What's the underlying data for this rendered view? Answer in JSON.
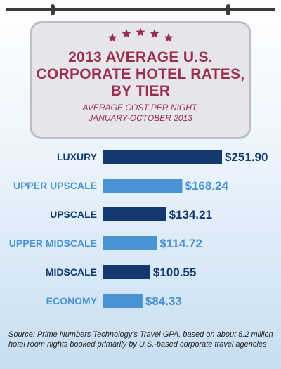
{
  "colors": {
    "dark_bar": "#123a6e",
    "light_bar": "#4a93d2",
    "title": "#9a2e4f",
    "star": "#9a2e4f",
    "dark_label": "#123a6e",
    "light_label": "#4a93d2"
  },
  "header": {
    "title_lines": [
      "2013 AVERAGE U.S.",
      "CORPORATE HOTEL RATES,",
      "BY TIER"
    ],
    "subtitle_lines": [
      "AVERAGE COST PER NIGHT,",
      "JANUARY-OCTOBER 2013"
    ],
    "star_icon": "star-icon"
  },
  "chart_data": {
    "type": "bar",
    "orientation": "horizontal",
    "title": "2013 AVERAGE U.S. CORPORATE HOTEL RATES, BY TIER",
    "subtitle": "AVERAGE COST PER NIGHT, JANUARY-OCTOBER 2013",
    "categories": [
      "LUXURY",
      "UPPER UPSCALE",
      "UPSCALE",
      "UPPER MIDSCALE",
      "MIDSCALE",
      "ECONOMY"
    ],
    "values": [
      251.9,
      168.24,
      134.21,
      114.72,
      100.55,
      84.33
    ],
    "value_labels": [
      "$251.90",
      "$168.24",
      "$134.21",
      "$114.72",
      "$100.55",
      "$84.33"
    ],
    "bar_styles": [
      "dark",
      "light",
      "dark",
      "light",
      "dark",
      "light"
    ],
    "xlim": [
      0,
      251.9
    ],
    "grid": false,
    "xlabel": "",
    "ylabel": ""
  },
  "source": "Source: Prime Numbers Technology's Travel GPA, based on about 5.2 million hotel room nights booked primarily by U.S.-based corporate travel agencies"
}
